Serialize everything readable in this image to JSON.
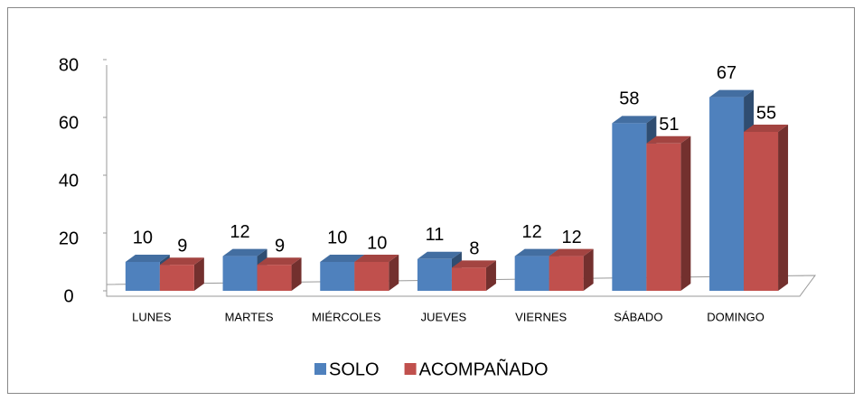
{
  "chart_data": {
    "type": "bar3d",
    "categories": [
      "LUNES",
      "MARTES",
      "MIÉRCOLES",
      "JUEVES",
      "VIERNES",
      "SÁBADO",
      "DOMINGO"
    ],
    "series": [
      {
        "name": "SOLO",
        "color": "#4f81bd",
        "values": [
          10,
          12,
          10,
          11,
          12,
          58,
          67
        ]
      },
      {
        "name": "ACOMPAÑADO",
        "color": "#c0504d",
        "values": [
          9,
          9,
          10,
          8,
          12,
          51,
          55
        ]
      }
    ],
    "ylim": [
      0,
      80
    ],
    "yticks": [
      0,
      20,
      40,
      60,
      80
    ],
    "grid": false,
    "legend": "bottom"
  }
}
